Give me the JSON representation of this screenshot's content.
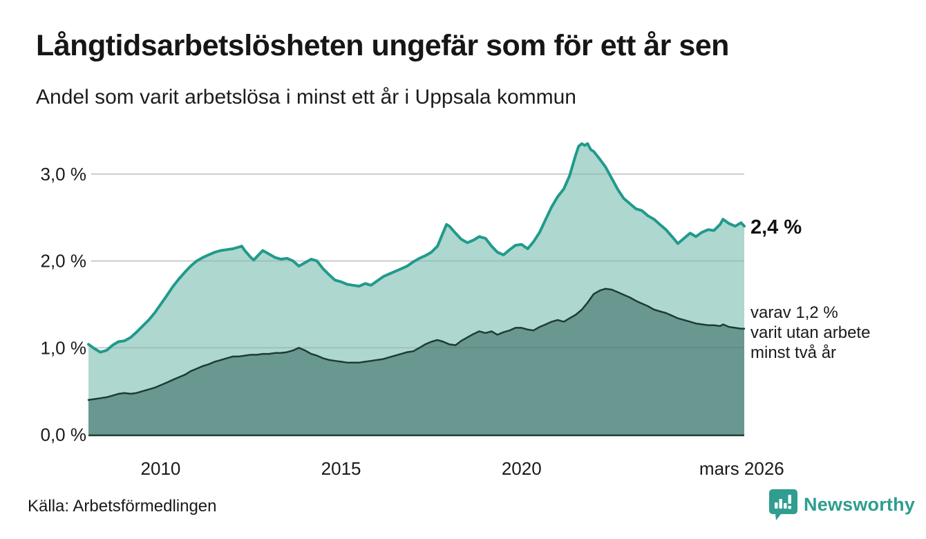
{
  "header": {
    "title": "Långtidsarbetslösheten ungefär som för ett år sen",
    "subtitle": "Andel som varit arbetslösa i minst ett år i Uppsala kommun"
  },
  "chart_data": {
    "type": "area",
    "title": "Långtidsarbetslösheten ungefär som för ett år sen",
    "subtitle": "Andel som varit arbetslösa i minst ett år i Uppsala kommun",
    "unit": "%",
    "grid": true,
    "legend_position": "none",
    "x_axis": {
      "range": [
        2008.0,
        2026.17
      ],
      "ticks": [
        {
          "x": 2010,
          "label": "2010"
        },
        {
          "x": 2015,
          "label": "2015"
        },
        {
          "x": 2020,
          "label": "2020"
        },
        {
          "x": 2026.1,
          "label": "mars 2026"
        }
      ]
    },
    "y_axis": {
      "range": [
        0,
        3.5
      ],
      "gridline_values": [
        1,
        2,
        3
      ],
      "ticks": [
        {
          "v": 3,
          "label": "3,0 %"
        },
        {
          "v": 2,
          "label": "2,0 %"
        },
        {
          "v": 1,
          "label": "1,0 %"
        },
        {
          "v": 0,
          "label": "0,0 %"
        }
      ]
    },
    "series": [
      {
        "name": "Andel arbetslösa minst ett år",
        "line_color": "#219a8b",
        "fill_color": "#add7cf",
        "line_width": 4,
        "points": [
          [
            2008.0,
            1.04
          ],
          [
            2008.17,
            0.99
          ],
          [
            2008.33,
            0.95
          ],
          [
            2008.5,
            0.97
          ],
          [
            2008.67,
            1.03
          ],
          [
            2008.83,
            1.07
          ],
          [
            2009.0,
            1.08
          ],
          [
            2009.17,
            1.12
          ],
          [
            2009.33,
            1.18
          ],
          [
            2009.5,
            1.25
          ],
          [
            2009.67,
            1.32
          ],
          [
            2009.83,
            1.4
          ],
          [
            2010.0,
            1.5
          ],
          [
            2010.17,
            1.6
          ],
          [
            2010.33,
            1.7
          ],
          [
            2010.5,
            1.79
          ],
          [
            2010.67,
            1.87
          ],
          [
            2010.83,
            1.94
          ],
          [
            2011.0,
            2.0
          ],
          [
            2011.17,
            2.04
          ],
          [
            2011.33,
            2.07
          ],
          [
            2011.5,
            2.1
          ],
          [
            2011.67,
            2.12
          ],
          [
            2011.83,
            2.13
          ],
          [
            2012.0,
            2.14
          ],
          [
            2012.17,
            2.16
          ],
          [
            2012.25,
            2.17
          ],
          [
            2012.33,
            2.12
          ],
          [
            2012.5,
            2.04
          ],
          [
            2012.58,
            2.01
          ],
          [
            2012.67,
            2.05
          ],
          [
            2012.83,
            2.12
          ],
          [
            2013.0,
            2.08
          ],
          [
            2013.17,
            2.04
          ],
          [
            2013.33,
            2.02
          ],
          [
            2013.5,
            2.03
          ],
          [
            2013.67,
            2.0
          ],
          [
            2013.83,
            1.94
          ],
          [
            2014.0,
            1.98
          ],
          [
            2014.17,
            2.02
          ],
          [
            2014.33,
            2.0
          ],
          [
            2014.5,
            1.91
          ],
          [
            2014.67,
            1.84
          ],
          [
            2014.83,
            1.78
          ],
          [
            2015.0,
            1.76
          ],
          [
            2015.17,
            1.73
          ],
          [
            2015.33,
            1.72
          ],
          [
            2015.5,
            1.71
          ],
          [
            2015.67,
            1.74
          ],
          [
            2015.83,
            1.72
          ],
          [
            2016.0,
            1.77
          ],
          [
            2016.17,
            1.82
          ],
          [
            2016.33,
            1.85
          ],
          [
            2016.5,
            1.88
          ],
          [
            2016.67,
            1.91
          ],
          [
            2016.83,
            1.94
          ],
          [
            2017.0,
            1.99
          ],
          [
            2017.17,
            2.03
          ],
          [
            2017.33,
            2.06
          ],
          [
            2017.5,
            2.1
          ],
          [
            2017.67,
            2.17
          ],
          [
            2017.83,
            2.33
          ],
          [
            2017.92,
            2.42
          ],
          [
            2018.0,
            2.4
          ],
          [
            2018.17,
            2.32
          ],
          [
            2018.33,
            2.25
          ],
          [
            2018.5,
            2.21
          ],
          [
            2018.67,
            2.24
          ],
          [
            2018.83,
            2.28
          ],
          [
            2019.0,
            2.26
          ],
          [
            2019.17,
            2.17
          ],
          [
            2019.33,
            2.1
          ],
          [
            2019.5,
            2.07
          ],
          [
            2019.67,
            2.13
          ],
          [
            2019.83,
            2.18
          ],
          [
            2020.0,
            2.19
          ],
          [
            2020.17,
            2.14
          ],
          [
            2020.33,
            2.22
          ],
          [
            2020.5,
            2.33
          ],
          [
            2020.67,
            2.48
          ],
          [
            2020.83,
            2.62
          ],
          [
            2021.0,
            2.74
          ],
          [
            2021.17,
            2.83
          ],
          [
            2021.33,
            2.98
          ],
          [
            2021.5,
            3.22
          ],
          [
            2021.58,
            3.32
          ],
          [
            2021.67,
            3.35
          ],
          [
            2021.75,
            3.33
          ],
          [
            2021.83,
            3.35
          ],
          [
            2021.92,
            3.28
          ],
          [
            2022.0,
            3.26
          ],
          [
            2022.17,
            3.17
          ],
          [
            2022.33,
            3.08
          ],
          [
            2022.5,
            2.95
          ],
          [
            2022.67,
            2.82
          ],
          [
            2022.83,
            2.72
          ],
          [
            2023.0,
            2.66
          ],
          [
            2023.17,
            2.6
          ],
          [
            2023.33,
            2.58
          ],
          [
            2023.5,
            2.52
          ],
          [
            2023.67,
            2.48
          ],
          [
            2023.83,
            2.42
          ],
          [
            2024.0,
            2.36
          ],
          [
            2024.17,
            2.28
          ],
          [
            2024.33,
            2.2
          ],
          [
            2024.5,
            2.26
          ],
          [
            2024.67,
            2.32
          ],
          [
            2024.83,
            2.28
          ],
          [
            2025.0,
            2.33
          ],
          [
            2025.17,
            2.36
          ],
          [
            2025.33,
            2.35
          ],
          [
            2025.5,
            2.42
          ],
          [
            2025.58,
            2.48
          ],
          [
            2025.75,
            2.43
          ],
          [
            2025.92,
            2.4
          ],
          [
            2026.08,
            2.44
          ],
          [
            2026.17,
            2.4
          ]
        ]
      },
      {
        "name": "Andel arbetslösa minst två år",
        "line_color": "#1e3b35",
        "fill_color": "#689890",
        "line_width": 2.5,
        "points": [
          [
            2008.0,
            0.4
          ],
          [
            2008.17,
            0.41
          ],
          [
            2008.33,
            0.42
          ],
          [
            2008.5,
            0.43
          ],
          [
            2008.67,
            0.45
          ],
          [
            2008.83,
            0.47
          ],
          [
            2009.0,
            0.48
          ],
          [
            2009.17,
            0.47
          ],
          [
            2009.33,
            0.48
          ],
          [
            2009.5,
            0.5
          ],
          [
            2009.67,
            0.52
          ],
          [
            2009.83,
            0.54
          ],
          [
            2010.0,
            0.57
          ],
          [
            2010.17,
            0.6
          ],
          [
            2010.33,
            0.63
          ],
          [
            2010.5,
            0.66
          ],
          [
            2010.67,
            0.69
          ],
          [
            2010.83,
            0.73
          ],
          [
            2011.0,
            0.76
          ],
          [
            2011.17,
            0.79
          ],
          [
            2011.33,
            0.81
          ],
          [
            2011.5,
            0.84
          ],
          [
            2011.67,
            0.86
          ],
          [
            2011.83,
            0.88
          ],
          [
            2012.0,
            0.9
          ],
          [
            2012.17,
            0.9
          ],
          [
            2012.33,
            0.91
          ],
          [
            2012.5,
            0.92
          ],
          [
            2012.67,
            0.92
          ],
          [
            2012.83,
            0.93
          ],
          [
            2013.0,
            0.93
          ],
          [
            2013.17,
            0.94
          ],
          [
            2013.33,
            0.94
          ],
          [
            2013.5,
            0.95
          ],
          [
            2013.67,
            0.97
          ],
          [
            2013.83,
            1.0
          ],
          [
            2014.0,
            0.97
          ],
          [
            2014.17,
            0.93
          ],
          [
            2014.33,
            0.91
          ],
          [
            2014.5,
            0.88
          ],
          [
            2014.67,
            0.86
          ],
          [
            2014.83,
            0.85
          ],
          [
            2015.0,
            0.84
          ],
          [
            2015.17,
            0.83
          ],
          [
            2015.33,
            0.83
          ],
          [
            2015.5,
            0.83
          ],
          [
            2015.67,
            0.84
          ],
          [
            2015.83,
            0.85
          ],
          [
            2016.0,
            0.86
          ],
          [
            2016.17,
            0.87
          ],
          [
            2016.33,
            0.89
          ],
          [
            2016.5,
            0.91
          ],
          [
            2016.67,
            0.93
          ],
          [
            2016.83,
            0.95
          ],
          [
            2017.0,
            0.96
          ],
          [
            2017.17,
            1.0
          ],
          [
            2017.33,
            1.04
          ],
          [
            2017.5,
            1.07
          ],
          [
            2017.67,
            1.09
          ],
          [
            2017.83,
            1.07
          ],
          [
            2018.0,
            1.04
          ],
          [
            2018.17,
            1.03
          ],
          [
            2018.33,
            1.08
          ],
          [
            2018.5,
            1.12
          ],
          [
            2018.67,
            1.16
          ],
          [
            2018.83,
            1.19
          ],
          [
            2019.0,
            1.17
          ],
          [
            2019.17,
            1.19
          ],
          [
            2019.33,
            1.15
          ],
          [
            2019.5,
            1.18
          ],
          [
            2019.67,
            1.2
          ],
          [
            2019.83,
            1.23
          ],
          [
            2020.0,
            1.23
          ],
          [
            2020.17,
            1.21
          ],
          [
            2020.33,
            1.2
          ],
          [
            2020.5,
            1.24
          ],
          [
            2020.67,
            1.27
          ],
          [
            2020.83,
            1.3
          ],
          [
            2021.0,
            1.32
          ],
          [
            2021.17,
            1.3
          ],
          [
            2021.33,
            1.34
          ],
          [
            2021.5,
            1.38
          ],
          [
            2021.67,
            1.44
          ],
          [
            2021.83,
            1.52
          ],
          [
            2022.0,
            1.62
          ],
          [
            2022.17,
            1.66
          ],
          [
            2022.33,
            1.68
          ],
          [
            2022.5,
            1.67
          ],
          [
            2022.67,
            1.64
          ],
          [
            2022.83,
            1.61
          ],
          [
            2023.0,
            1.58
          ],
          [
            2023.17,
            1.54
          ],
          [
            2023.33,
            1.51
          ],
          [
            2023.5,
            1.48
          ],
          [
            2023.67,
            1.44
          ],
          [
            2023.83,
            1.42
          ],
          [
            2024.0,
            1.4
          ],
          [
            2024.17,
            1.37
          ],
          [
            2024.33,
            1.34
          ],
          [
            2024.5,
            1.32
          ],
          [
            2024.67,
            1.3
          ],
          [
            2024.83,
            1.28
          ],
          [
            2025.0,
            1.27
          ],
          [
            2025.17,
            1.26
          ],
          [
            2025.33,
            1.26
          ],
          [
            2025.5,
            1.25
          ],
          [
            2025.58,
            1.27
          ],
          [
            2025.75,
            1.24
          ],
          [
            2025.92,
            1.23
          ],
          [
            2026.08,
            1.22
          ],
          [
            2026.17,
            1.22
          ]
        ]
      }
    ],
    "annotations": {
      "end_value_label": "2,4 %",
      "subset_label_lines": [
        "varav 1,2 %",
        "varit utan arbete",
        "minst två år"
      ]
    }
  },
  "footer": {
    "source": "Källa: Arbetsförmedlingen",
    "brand": {
      "name": "Newsworthy",
      "color": "#2f9d90"
    }
  },
  "colors": {
    "text": "#1a1a1a",
    "gridline": "#e3e3e3",
    "accent_teal": "#219a8b",
    "dark_teal": "#1e3b35",
    "brand_teal": "#2f9d90"
  }
}
